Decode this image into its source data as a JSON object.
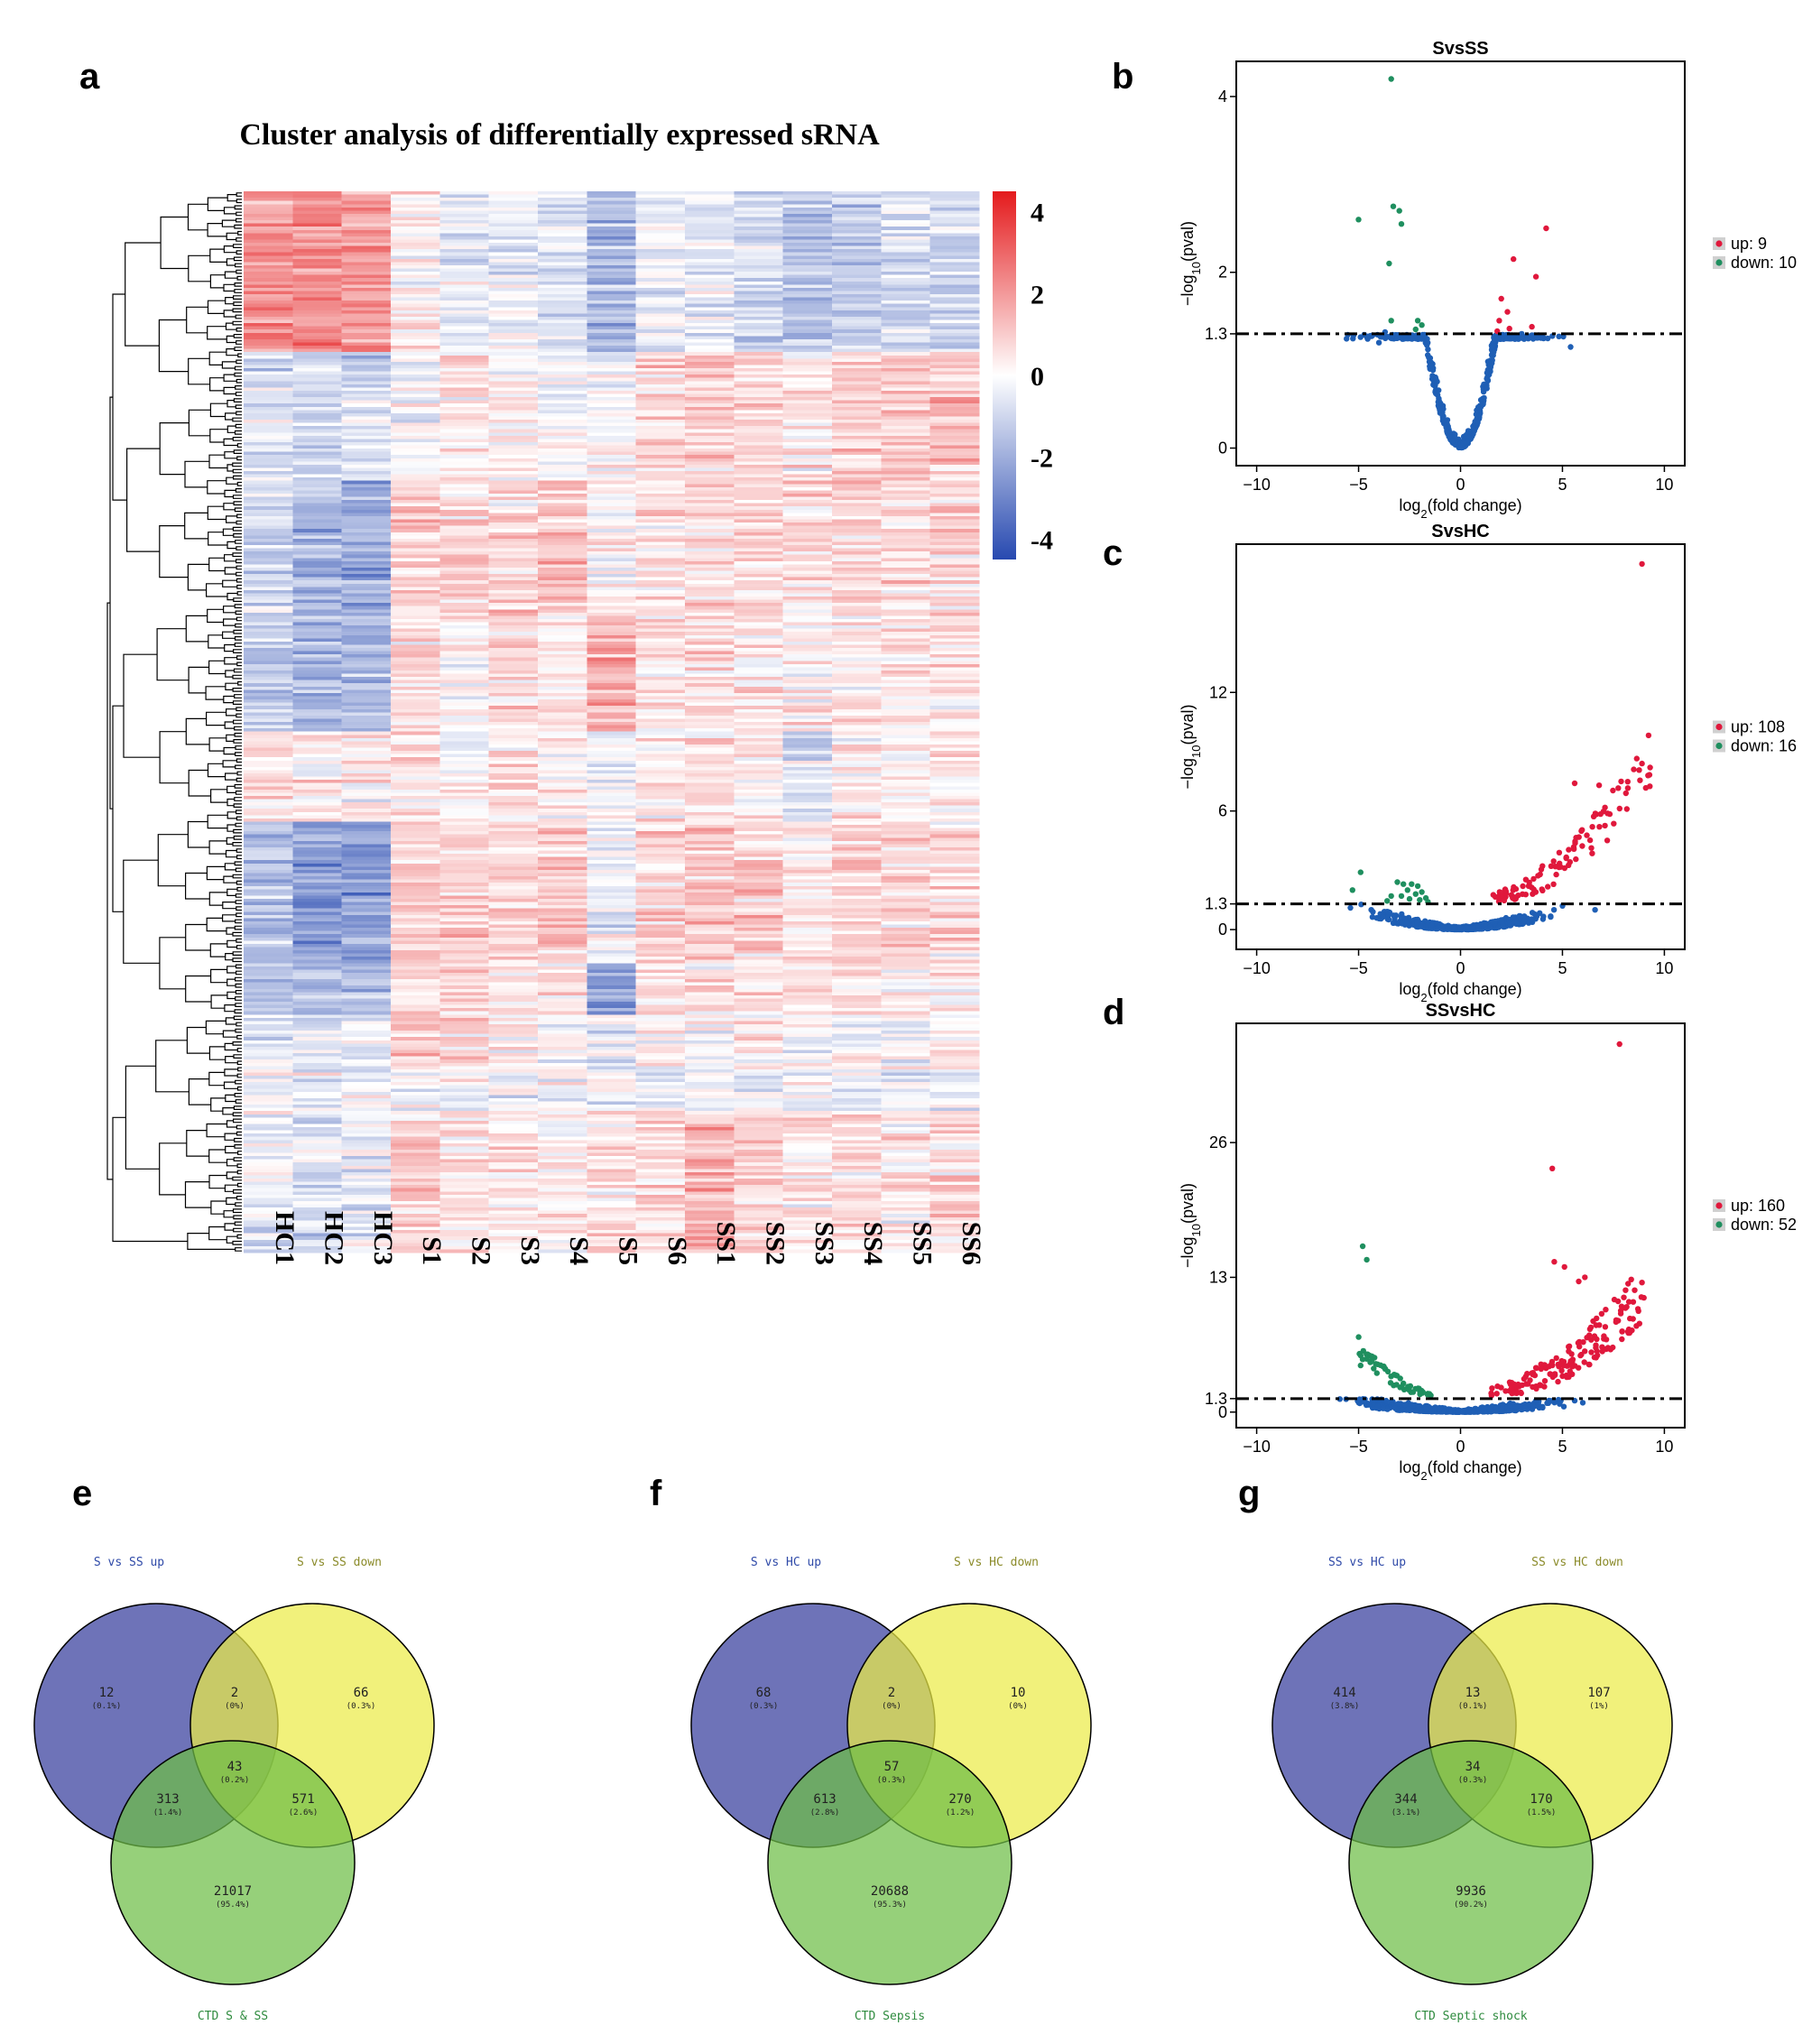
{
  "panel_letters": [
    "a",
    "b",
    "c",
    "d",
    "e",
    "f",
    "g"
  ],
  "chart_data": [
    {
      "type": "heatmap",
      "panel": "a",
      "title": "Cluster analysis of differentially expressed sRNA",
      "columns": [
        "HC1",
        "HC2",
        "HC3",
        "S1",
        "S2",
        "S3",
        "S4",
        "S5",
        "S6",
        "SS1",
        "SS2",
        "SS3",
        "SS4",
        "SS5",
        "SS6"
      ],
      "color_scale": {
        "min": -4.5,
        "max": 4.5,
        "ticks": [
          4,
          2,
          0,
          -2,
          -4
        ],
        "low_color": "#2749b0",
        "mid_color": "#ffffff",
        "high_color": "#e41a1c"
      },
      "row_blocks": [
        {
          "rows": 50,
          "values": [
            2.2,
            2.2,
            2.0,
            0.4,
            -0.4,
            -0.3,
            -0.7,
            -1.8,
            -0.3,
            -0.6,
            -0.8,
            -1.4,
            -1.1,
            -0.9,
            -1.0
          ]
        },
        {
          "rows": 40,
          "values": [
            -0.7,
            -0.9,
            -0.9,
            -0.1,
            0.4,
            0.1,
            -0.1,
            -0.2,
            0.7,
            0.8,
            0.8,
            0.3,
            1.0,
            1.0,
            1.1
          ]
        },
        {
          "rows": 42,
          "values": [
            -1.0,
            -1.8,
            -2.0,
            0.9,
            0.7,
            0.6,
            1.0,
            0.1,
            0.6,
            0.7,
            0.6,
            0.5,
            0.8,
            0.6,
            0.7
          ]
        },
        {
          "rows": 36,
          "values": [
            -1.2,
            -1.6,
            -1.6,
            0.6,
            -0.1,
            0.6,
            0.3,
            1.6,
            0.5,
            0.6,
            0.3,
            0.3,
            0.4,
            0.4,
            0.5
          ]
        },
        {
          "rows": 28,
          "values": [
            0.7,
            0.4,
            0.1,
            0.3,
            -0.1,
            0.5,
            0.3,
            -0.3,
            0.3,
            0.5,
            0.2,
            -0.6,
            0.4,
            0.3,
            0.3
          ]
        },
        {
          "rows": 44,
          "values": [
            -1.5,
            -2.4,
            -2.4,
            0.9,
            0.8,
            0.7,
            0.9,
            -0.5,
            0.8,
            0.9,
            0.8,
            0.6,
            0.9,
            0.7,
            0.7
          ]
        },
        {
          "rows": 16,
          "values": [
            -1.4,
            -1.6,
            -1.6,
            0.5,
            0.6,
            0.4,
            0.5,
            -2.2,
            0.5,
            0.6,
            0.5,
            0.3,
            0.5,
            0.4,
            0.5
          ]
        },
        {
          "rows": 16,
          "values": [
            -0.6,
            -0.6,
            -0.5,
            0.9,
            0.9,
            0.4,
            -0.3,
            -0.4,
            0.3,
            0.2,
            0.6,
            -0.2,
            0.0,
            0.1,
            0.2
          ]
        },
        {
          "rows": 14,
          "values": [
            -0.3,
            -0.3,
            -0.3,
            -0.2,
            -0.2,
            -0.2,
            -0.2,
            -0.2,
            -0.3,
            -0.3,
            -0.3,
            -0.3,
            -0.3,
            -0.3,
            -0.3
          ]
        },
        {
          "rows": 44,
          "values": [
            -0.5,
            -0.7,
            -0.5,
            1.0,
            0.4,
            0.3,
            0.2,
            0.6,
            0.7,
            1.3,
            0.7,
            0.5,
            0.6,
            0.3,
            0.6
          ]
        }
      ]
    },
    {
      "type": "scatter",
      "panel": "b",
      "title": "SvsSS",
      "xlabel": "log2(fold change)",
      "ylabel": "−log10(pval)",
      "xlim": [
        -11,
        11
      ],
      "ylim": [
        -0.2,
        4.4
      ],
      "xticks": [
        -10,
        -5,
        0,
        5,
        10
      ],
      "yticks": [
        {
          "value": 0,
          "label": "0"
        },
        {
          "value": 1.3,
          "label": "1.3"
        },
        {
          "value": 2,
          "label": "2"
        },
        {
          "value": 4,
          "label": "4"
        }
      ],
      "threshold": 1.3,
      "legend": {
        "up": "up: 9",
        "down": "down: 10"
      },
      "up_points": [
        [
          4.2,
          2.5
        ],
        [
          2.6,
          2.15
        ],
        [
          3.7,
          1.95
        ],
        [
          2.0,
          1.7
        ],
        [
          2.3,
          1.55
        ],
        [
          1.9,
          1.45
        ],
        [
          3.5,
          1.38
        ],
        [
          2.4,
          1.36
        ],
        [
          1.8,
          1.33
        ]
      ],
      "down_points": [
        [
          -3.4,
          4.2
        ],
        [
          -5.0,
          2.6
        ],
        [
          -3.3,
          2.75
        ],
        [
          -3.0,
          2.7
        ],
        [
          -2.9,
          2.55
        ],
        [
          -3.5,
          2.1
        ],
        [
          -2.1,
          1.45
        ],
        [
          -3.4,
          1.45
        ],
        [
          -1.9,
          1.4
        ],
        [
          -2.2,
          1.35
        ]
      ],
      "cloud": {
        "seed": 11,
        "count": 600,
        "xspread": 3.4,
        "ymax": 1.29,
        "scale": 0.4,
        "noise": 0.35,
        "extra_points": [
          [
            -3.7,
            1.32
          ],
          [
            5.4,
            1.15
          ],
          [
            3.0,
            1.3
          ],
          [
            -4.0,
            1.2
          ]
        ]
      }
    },
    {
      "type": "scatter",
      "panel": "c",
      "title": "SvsHC",
      "xlabel": "log2(fold change)",
      "ylabel": "−log10(pval)",
      "xlim": [
        -11,
        11
      ],
      "ylim": [
        -1.0,
        19.5
      ],
      "xticks": [
        -10,
        -5,
        0,
        5,
        10
      ],
      "yticks": [
        {
          "value": 0,
          "label": "0"
        },
        {
          "value": 1.3,
          "label": "1.3"
        },
        {
          "value": 6,
          "label": "6"
        },
        {
          "value": 12,
          "label": "12"
        }
      ],
      "threshold": 1.3,
      "legend": {
        "up": "up: 108",
        "down": "down: 16"
      },
      "up_curve": {
        "seed": 23,
        "count": 108,
        "xmin": 1.6,
        "xmax": 9.3,
        "y0": 1.4,
        "k": 0.095,
        "power": 2,
        "noise": 1.4,
        "extra_points": [
          [
            8.9,
            18.5
          ],
          [
            8.9,
            8.4
          ],
          [
            9.3,
            8.2
          ],
          [
            9.2,
            7.8
          ],
          [
            5.6,
            7.4
          ],
          [
            6.8,
            7.3
          ]
        ]
      },
      "down_points": [
        [
          -4.9,
          2.9
        ],
        [
          -5.3,
          2.0
        ],
        [
          -3.1,
          2.4
        ],
        [
          -2.8,
          2.3
        ],
        [
          -2.4,
          2.3
        ],
        [
          -2.1,
          2.2
        ],
        [
          -2.6,
          2.0
        ],
        [
          -1.9,
          1.9
        ],
        [
          -2.2,
          1.8
        ],
        [
          -3.4,
          1.7
        ],
        [
          -2.9,
          1.7
        ],
        [
          -1.7,
          1.6
        ],
        [
          -2.5,
          1.55
        ],
        [
          -2.0,
          1.5
        ],
        [
          -3.6,
          1.45
        ],
        [
          -1.6,
          1.4
        ]
      ],
      "cloud": {
        "seed": 31,
        "count": 620,
        "xspread": 3.0,
        "ymax": 1.29,
        "scale": 0.03,
        "noise": 0.45,
        "extra_points": [
          [
            -5.4,
            1.1
          ],
          [
            6.6,
            1.0
          ],
          [
            5.0,
            1.2
          ]
        ]
      }
    },
    {
      "type": "scatter",
      "panel": "d",
      "title": "SSvsHC",
      "xlabel": "log2(fold change)",
      "ylabel": "−log10(pval)",
      "xlim": [
        -11,
        11
      ],
      "ylim": [
        -1.5,
        37.5
      ],
      "xticks": [
        -10,
        -5,
        0,
        5,
        10
      ],
      "yticks": [
        {
          "value": 0,
          "label": "0"
        },
        {
          "value": 1.3,
          "label": "1.3"
        },
        {
          "value": 13,
          "label": "13"
        },
        {
          "value": 26,
          "label": "26"
        }
      ],
      "threshold": 1.3,
      "legend": {
        "up": "up: 160",
        "down": "down: 52"
      },
      "up_curve": {
        "seed": 47,
        "count": 160,
        "xmin": 1.5,
        "xmax": 9.0,
        "y0": 1.5,
        "k": 0.13,
        "power": 2,
        "noise": 2.6,
        "extra_points": [
          [
            7.8,
            35.5
          ],
          [
            4.5,
            23.5
          ],
          [
            4.6,
            14.5
          ],
          [
            5.1,
            14.0
          ],
          [
            6.1,
            13.0
          ],
          [
            5.8,
            12.6
          ],
          [
            8.9,
            12.5
          ]
        ]
      },
      "down_curve": {
        "seed": 59,
        "count": 52,
        "xmin": -5.0,
        "xmax": -1.4,
        "y0": 1.5,
        "k": 0.3,
        "power": 2,
        "noise": 1.6,
        "extra_points": [
          [
            -4.8,
            16.0
          ],
          [
            -4.6,
            14.7
          ],
          [
            -4.9,
            4.5
          ]
        ]
      },
      "cloud": {
        "seed": 67,
        "count": 650,
        "xspread": 3.5,
        "ymax": 1.29,
        "scale": 0.02,
        "noise": 0.7,
        "extra_points": [
          [
            -4.3,
            1.0
          ],
          [
            5.6,
            1.1
          ],
          [
            6.0,
            0.9
          ]
        ]
      }
    },
    {
      "type": "venn",
      "panel": "e",
      "set_labels": [
        "S vs SS up",
        "S vs SS down",
        "CTD S & SS"
      ],
      "regions": {
        "a_only": [
          "12",
          "(0.1%)"
        ],
        "ab": [
          "2",
          "(0%)"
        ],
        "b_only": [
          "66",
          "(0.3%)"
        ],
        "abc": [
          "43",
          "(0.2%)"
        ],
        "ac": [
          "313",
          "(1.4%)"
        ],
        "bc": [
          "571",
          "(2.6%)"
        ],
        "c_only": [
          "21017",
          "(95.4%)"
        ]
      }
    },
    {
      "type": "venn",
      "panel": "f",
      "set_labels": [
        "S vs HC up",
        "S vs HC down",
        "CTD Sepsis"
      ],
      "regions": {
        "a_only": [
          "68",
          "(0.3%)"
        ],
        "ab": [
          "2",
          "(0%)"
        ],
        "b_only": [
          "10",
          "(0%)"
        ],
        "abc": [
          "57",
          "(0.3%)"
        ],
        "ac": [
          "613",
          "(2.8%)"
        ],
        "bc": [
          "270",
          "(1.2%)"
        ],
        "c_only": [
          "20688",
          "(95.3%)"
        ]
      }
    },
    {
      "type": "venn",
      "panel": "g",
      "set_labels": [
        "SS vs HC up",
        "SS vs HC down",
        "CTD Septic shock"
      ],
      "regions": {
        "a_only": [
          "414",
          "(3.8%)"
        ],
        "ab": [
          "13",
          "(0.1%)"
        ],
        "b_only": [
          "107",
          "(1%)"
        ],
        "abc": [
          "34",
          "(0.3%)"
        ],
        "ac": [
          "344",
          "(3.1%)"
        ],
        "bc": [
          "170",
          "(1.5%)"
        ],
        "c_only": [
          "9936",
          "(90.2%)"
        ]
      }
    }
  ]
}
